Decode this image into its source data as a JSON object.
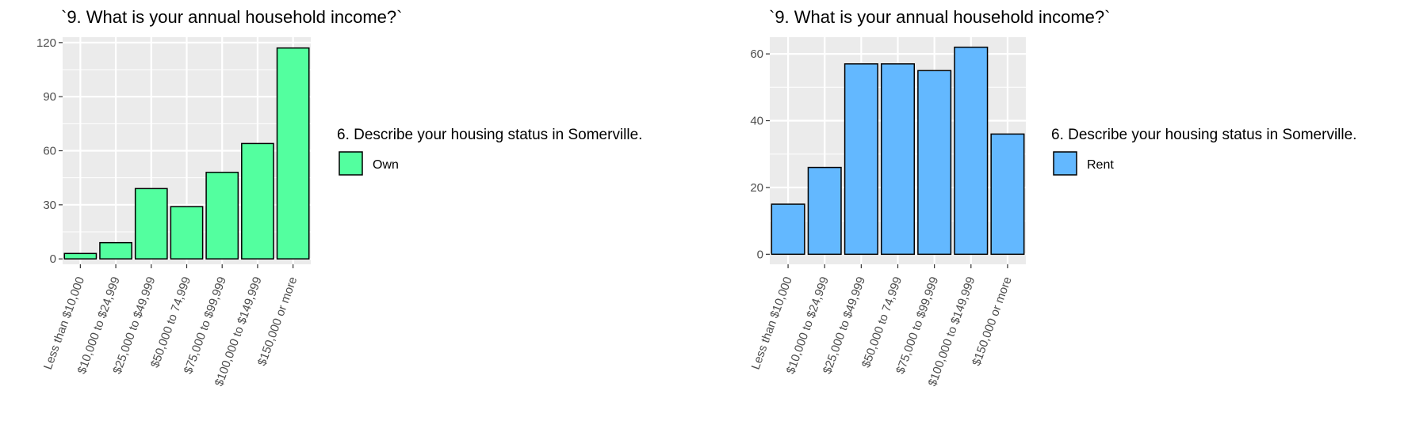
{
  "chart_data": [
    {
      "type": "bar",
      "title": "`9. What is your annual household income?`",
      "xlabel": "",
      "ylabel": "",
      "categories": [
        "Less than $10,000",
        "$10,000 to $24,999",
        "$25,000 to $49,999",
        "$50,000 to 74,999",
        "$75,000 to $99,999",
        "$100,000 to $149,999",
        "$150,000 or more"
      ],
      "values": [
        3,
        9,
        39,
        29,
        48,
        64,
        117
      ],
      "ylim": [
        0,
        120
      ],
      "yticks": [
        0,
        30,
        60,
        90,
        120
      ],
      "grid": true,
      "legend": {
        "title": "6. Describe your housing status in Somerville.",
        "label": "Own",
        "position": "right"
      },
      "fill_color": "#53ff9f"
    },
    {
      "type": "bar",
      "title": "`9. What is your annual household income?`",
      "xlabel": "",
      "ylabel": "",
      "categories": [
        "Less than $10,000",
        "$10,000 to $24,999",
        "$25,000 to $49,999",
        "$50,000 to 74,999",
        "$75,000 to $99,999",
        "$100,000 to $149,999",
        "$150,000 or more"
      ],
      "values": [
        15,
        26,
        57,
        57,
        55,
        62,
        36
      ],
      "ylim": [
        0,
        60
      ],
      "yticks": [
        0,
        20,
        40,
        60
      ],
      "grid": true,
      "legend": {
        "title": "6. Describe your housing status in Somerville.",
        "label": "Rent",
        "position": "right"
      },
      "fill_color": "#63b8ff"
    }
  ]
}
